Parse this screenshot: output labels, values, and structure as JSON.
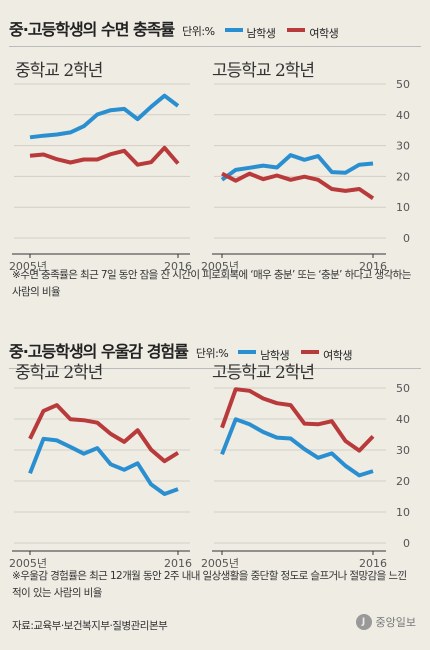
{
  "sections": [
    {
      "title": "중·고등학생의 수면 충족률",
      "unit": "단위:%",
      "legend": [
        {
          "label": "남학생",
          "color": "#2a8fd0"
        },
        {
          "label": "여학생",
          "color": "#b83a3a"
        }
      ],
      "note": "※수면 충족률은 최근 7일 동안 잠을 잔 시간이 피로회복에 ‘매우 충분’ 또는 ‘충분’ 하다고 생각하는 사람의 비율"
    },
    {
      "title": "중·고등학생의 우울감 경험률",
      "unit": "단위:%",
      "legend": [
        {
          "label": "남학생",
          "color": "#2a8fd0"
        },
        {
          "label": "여학생",
          "color": "#b83a3a"
        }
      ],
      "note": "※우울감 경험률은 최근 12개월 동안 2주 내내 일상생활을 중단할 정도로 슬프거나 절망감을 느낀적이 있는 사람의 비율"
    }
  ],
  "source": "자료:교육부·보건복지부·질병관리본부",
  "logo": "중앙일보",
  "chart_data": [
    {
      "type": "line",
      "title": "중학교 2학년",
      "x": [
        2005,
        2006,
        2007,
        2008,
        2009,
        2010,
        2011,
        2012,
        2013,
        2014,
        2015,
        2016
      ],
      "x_tick_labels": [
        "2005년",
        "2016"
      ],
      "ylim": [
        0,
        50
      ],
      "yticks": [],
      "series": [
        {
          "name": "남학생",
          "color": "#2a8fd0",
          "values": [
            32.7,
            33.2,
            33.6,
            34.3,
            36.3,
            40.1,
            41.5,
            41.9,
            38.6,
            42.6,
            46.2,
            42.9
          ]
        },
        {
          "name": "여학생",
          "color": "#b83a3a",
          "values": [
            26.7,
            27.1,
            25.6,
            24.5,
            25.5,
            25.5,
            27.2,
            28.3,
            23.8,
            24.6,
            29.3,
            24.2
          ]
        }
      ]
    },
    {
      "type": "line",
      "title": "고등학교 2학년",
      "x": [
        2005,
        2006,
        2007,
        2008,
        2009,
        2010,
        2011,
        2012,
        2013,
        2014,
        2015,
        2016
      ],
      "x_tick_labels": [
        "2005년",
        "2016"
      ],
      "ylim": [
        0,
        50
      ],
      "yticks": [
        "0",
        "10",
        "20",
        "30",
        "40",
        "50"
      ],
      "series": [
        {
          "name": "남학생",
          "color": "#2a8fd0",
          "values": [
            18.9,
            22.1,
            22.8,
            23.5,
            22.9,
            26.9,
            25.4,
            26.6,
            21.4,
            21.2,
            23.8,
            24.2
          ]
        },
        {
          "name": "여학생",
          "color": "#b83a3a",
          "values": [
            20.9,
            18.6,
            20.9,
            19.1,
            20.3,
            18.9,
            19.9,
            18.9,
            15.9,
            15.3,
            15.9,
            12.9
          ]
        }
      ]
    },
    {
      "type": "line",
      "title": "중학교 2학년",
      "x": [
        2005,
        2006,
        2007,
        2008,
        2009,
        2010,
        2011,
        2012,
        2013,
        2014,
        2015,
        2016
      ],
      "x_tick_labels": [
        "2005년",
        "2016"
      ],
      "ylim": [
        0,
        50
      ],
      "yticks": [],
      "series": [
        {
          "name": "남학생",
          "color": "#2a8fd0",
          "values": [
            22.5,
            33.6,
            33.1,
            31.0,
            28.8,
            30.6,
            25.4,
            23.6,
            25.7,
            18.9,
            15.8,
            17.4
          ]
        },
        {
          "name": "여학생",
          "color": "#b83a3a",
          "values": [
            33.6,
            42.6,
            44.5,
            39.9,
            39.6,
            38.8,
            35.2,
            32.6,
            36.4,
            30.1,
            26.4,
            29.1
          ]
        }
      ]
    },
    {
      "type": "line",
      "title": "고등학교 2학년",
      "x": [
        2005,
        2006,
        2007,
        2008,
        2009,
        2010,
        2011,
        2012,
        2013,
        2014,
        2015,
        2016
      ],
      "x_tick_labels": [
        "2005년",
        "2016"
      ],
      "ylim": [
        0,
        50
      ],
      "yticks": [
        "0",
        "10",
        "20",
        "30",
        "40",
        "50"
      ],
      "series": [
        {
          "name": "남학생",
          "color": "#2a8fd0",
          "values": [
            28.6,
            39.9,
            38.3,
            35.8,
            34.0,
            33.7,
            30.3,
            27.5,
            28.9,
            24.9,
            21.8,
            23.2
          ]
        },
        {
          "name": "여학생",
          "color": "#b83a3a",
          "values": [
            37.2,
            49.6,
            49.1,
            46.6,
            45.1,
            44.5,
            38.5,
            38.3,
            39.3,
            32.9,
            29.8,
            34.4
          ]
        }
      ]
    }
  ]
}
